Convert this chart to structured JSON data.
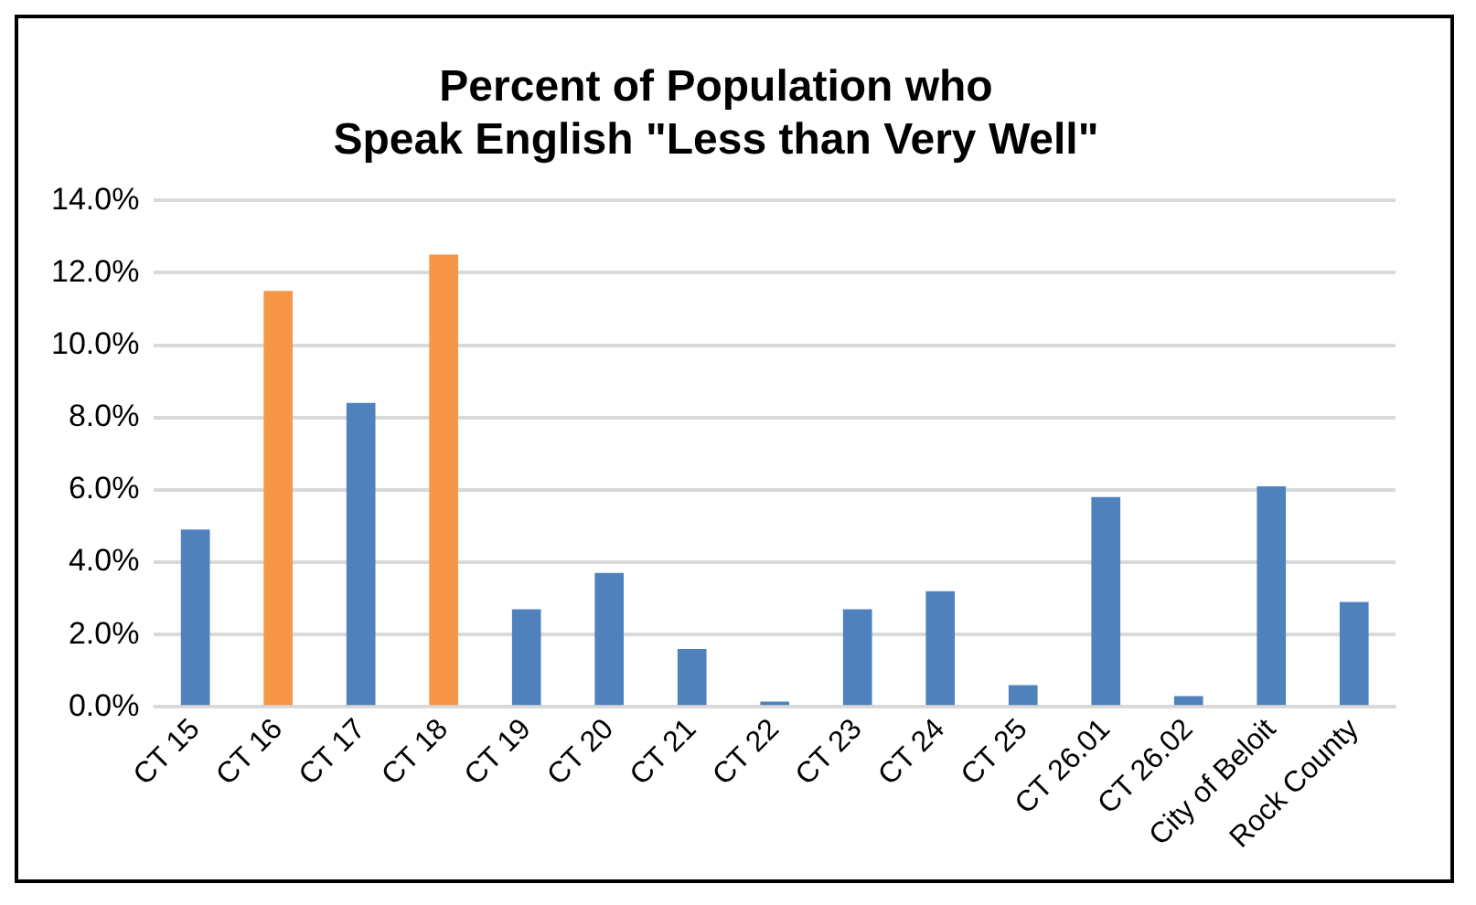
{
  "chart_data": {
    "type": "bar",
    "title": [
      "Percent of Population who",
      "Speak English \"Less than Very Well\""
    ],
    "categories": [
      "CT 15",
      "CT 16",
      "CT 17",
      "CT 18",
      "CT 19",
      "CT 20",
      "CT 21",
      "CT 22",
      "CT 23",
      "CT 24",
      "CT 25",
      "CT 26.01",
      "CT 26.02",
      "City of Beloit",
      "Rock County"
    ],
    "values": [
      4.9,
      11.5,
      8.4,
      12.5,
      2.7,
      3.7,
      1.6,
      0.15,
      2.7,
      3.2,
      0.6,
      5.8,
      0.3,
      6.1,
      2.9
    ],
    "colors": [
      "#4f81bd",
      "#f79646",
      "#4f81bd",
      "#f79646",
      "#4f81bd",
      "#4f81bd",
      "#4f81bd",
      "#4f81bd",
      "#4f81bd",
      "#4f81bd",
      "#4f81bd",
      "#4f81bd",
      "#4f81bd",
      "#4f81bd",
      "#4f81bd"
    ],
    "ylim": [
      0,
      14
    ],
    "yticks": [
      {
        "value": 0,
        "label": "0.0%"
      },
      {
        "value": 2,
        "label": "2.0%"
      },
      {
        "value": 4,
        "label": "4.0%"
      },
      {
        "value": 6,
        "label": "6.0%"
      },
      {
        "value": 8,
        "label": "8.0%"
      },
      {
        "value": 10,
        "label": "10.0%"
      },
      {
        "value": 12,
        "label": "12.0%"
      },
      {
        "value": 14,
        "label": "14.0%"
      }
    ],
    "grid": "y",
    "legend": false
  }
}
